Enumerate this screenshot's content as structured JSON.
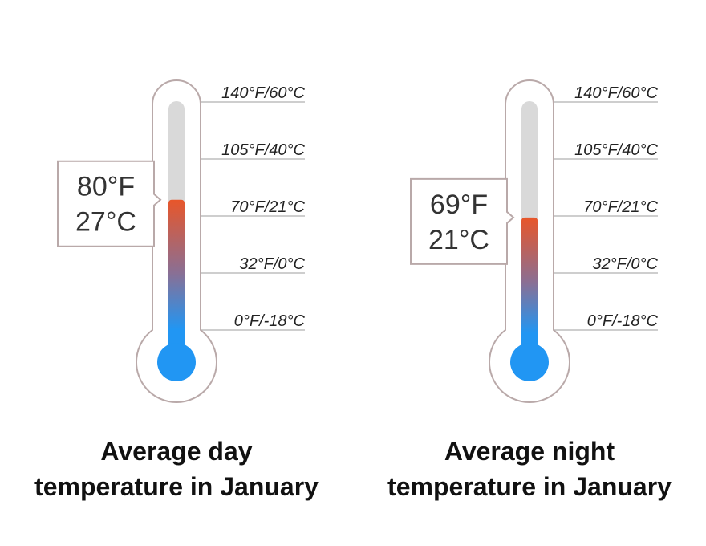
{
  "colors": {
    "outline": "#b9a9a9",
    "tube_empty": "#d9d9d9",
    "cold": "#2196f3",
    "warm": "#e8562a",
    "scale_line": "#bdbdbd",
    "text": "#222222"
  },
  "chart_data": [
    {
      "type": "thermometer",
      "id": "day",
      "title_lines": [
        "Average day",
        "temperature in January"
      ],
      "value_f": 80,
      "value_c": 27,
      "value_label_f": "80°F",
      "value_label_c": "27°C",
      "scale": [
        {
          "f": 140,
          "label": "140°F/60°C"
        },
        {
          "f": 105,
          "label": "105°F/40°C"
        },
        {
          "f": 70,
          "label": "70°F/21°C"
        },
        {
          "f": 32,
          "label": "32°F/0°C"
        },
        {
          "f": 0,
          "label": "0°F/-18°C"
        }
      ]
    },
    {
      "type": "thermometer",
      "id": "night",
      "title_lines": [
        "Average night",
        "temperature in January"
      ],
      "value_f": 69,
      "value_c": 21,
      "value_label_f": "69°F",
      "value_label_c": "21°C",
      "scale": [
        {
          "f": 140,
          "label": "140°F/60°C"
        },
        {
          "f": 105,
          "label": "105°F/40°C"
        },
        {
          "f": 70,
          "label": "70°F/21°C"
        },
        {
          "f": 32,
          "label": "32°F/0°C"
        },
        {
          "f": 0,
          "label": "0°F/-18°C"
        }
      ]
    }
  ]
}
